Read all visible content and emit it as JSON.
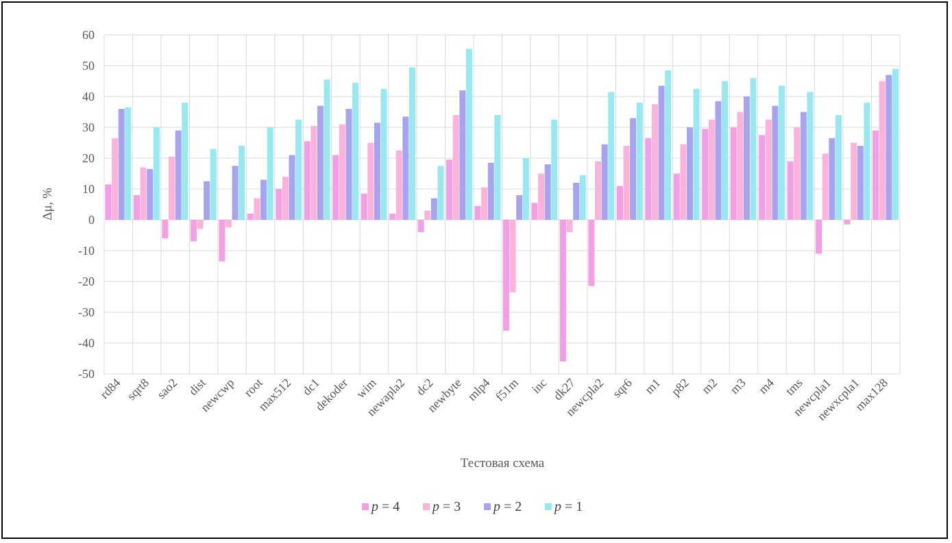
{
  "chart_data": {
    "type": "bar",
    "title": "",
    "xlabel": "Тестовая схема",
    "ylabel": "Δμ, %",
    "ylim": [
      -50,
      60
    ],
    "yticks": [
      "-50",
      "-40",
      "-30",
      "-20",
      "-10",
      "0",
      "10",
      "20",
      "30",
      "40",
      "50",
      "60"
    ],
    "grid": true,
    "legend_position": "bottom",
    "categories": [
      "rd84",
      "sqrt8",
      "sao2",
      "dist",
      "newcwp",
      "root",
      "max512",
      "dc1",
      "dekoder",
      "wim",
      "newapla2",
      "dc2",
      "newbyte",
      "mlp4",
      "f51m",
      "inc",
      "dk27",
      "newcpla2",
      "sqr6",
      "m1",
      "p82",
      "m2",
      "m3",
      "m4",
      "tms",
      "newcpla1",
      "newxcpla1",
      "max128"
    ],
    "series": [
      {
        "name": "p = 4",
        "var": "p",
        "eq": " = 4",
        "color": "#f49ee6",
        "values": [
          11.5,
          8,
          -6,
          -7,
          -13.5,
          2,
          10,
          25.5,
          21,
          8.5,
          2,
          -4,
          19.5,
          4.5,
          -36,
          5.5,
          -46,
          -21.5,
          11,
          26.5,
          15,
          29.5,
          30,
          27.5,
          19,
          -11,
          -1.5,
          29
        ]
      },
      {
        "name": "p = 3",
        "var": "p",
        "eq": " = 3",
        "color": "#fbb3dc",
        "values": [
          26.5,
          17,
          20.5,
          -3,
          -2.5,
          7,
          14,
          30.5,
          31,
          25,
          22.5,
          3,
          34,
          10.5,
          -23.5,
          15,
          -4,
          19,
          24,
          37.5,
          24.5,
          32.5,
          35,
          32.5,
          30,
          21.5,
          25,
          45
        ]
      },
      {
        "name": "p = 2",
        "var": "p",
        "eq": " = 2",
        "color": "#a7a4ef",
        "values": [
          36,
          16.5,
          29,
          12.5,
          17.5,
          13,
          21,
          37,
          36,
          31.5,
          33.5,
          7,
          42,
          18.5,
          8,
          18,
          12,
          24.5,
          33,
          43.5,
          30,
          38.5,
          40,
          37,
          35,
          26.5,
          24,
          47
        ]
      },
      {
        "name": "p = 1",
        "var": "p",
        "eq": " = 1",
        "color": "#98e8f2",
        "values": [
          36.5,
          30,
          38,
          23,
          24,
          30,
          32.5,
          45.5,
          44.5,
          42.5,
          49.5,
          17.5,
          55.5,
          34,
          20,
          32.5,
          14.5,
          41.5,
          38,
          48.5,
          42.5,
          45,
          46,
          43.5,
          41.5,
          34,
          38,
          49
        ]
      }
    ]
  }
}
